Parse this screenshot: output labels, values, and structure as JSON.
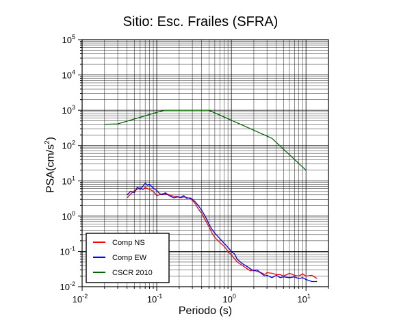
{
  "chart_data": {
    "type": "line",
    "title": "Sitio: Esc. Frailes (SFRA)",
    "xlabel": "Periodo (s)",
    "ylabel_base": "PSA(cm/s",
    "ylabel_exp": "2",
    "ylabel_tail": ")",
    "x_scale": "log",
    "y_scale": "log",
    "xlim": [
      0.01,
      20
    ],
    "ylim": [
      0.01,
      100000
    ],
    "grid": true,
    "legend_position": "bottom-left",
    "x_ticks": [
      {
        "base": "10",
        "exp": "-2",
        "value": 0.01
      },
      {
        "base": "10",
        "exp": "-1",
        "value": 0.1
      },
      {
        "base": "10",
        "exp": "0",
        "value": 1
      },
      {
        "base": "10",
        "exp": "1",
        "value": 10
      }
    ],
    "y_ticks": [
      {
        "base": "10",
        "exp": "-2",
        "value": 0.01
      },
      {
        "base": "10",
        "exp": "-1",
        "value": 0.1
      },
      {
        "base": "10",
        "exp": "0",
        "value": 1
      },
      {
        "base": "10",
        "exp": "1",
        "value": 10
      },
      {
        "base": "10",
        "exp": "2",
        "value": 100
      },
      {
        "base": "10",
        "exp": "3",
        "value": 1000
      },
      {
        "base": "10",
        "exp": "4",
        "value": 10000
      },
      {
        "base": "10",
        "exp": "5",
        "value": 100000
      }
    ],
    "series": [
      {
        "name": "Comp NS",
        "color": "#ff0000",
        "x": [
          0.04,
          0.045,
          0.05,
          0.055,
          0.06,
          0.065,
          0.07,
          0.075,
          0.08,
          0.09,
          0.1,
          0.11,
          0.12,
          0.13,
          0.15,
          0.17,
          0.19,
          0.21,
          0.23,
          0.25,
          0.28,
          0.3,
          0.33,
          0.36,
          0.4,
          0.45,
          0.5,
          0.55,
          0.6,
          0.7,
          0.8,
          0.9,
          1.0,
          1.1,
          1.2,
          1.4,
          1.6,
          1.8,
          2.0,
          2.2,
          2.5,
          2.8,
          3.0,
          3.5,
          4.0,
          4.5,
          5.0,
          6.0,
          7.0,
          8.0,
          9.0,
          10.0,
          12.0,
          14.0
        ],
        "y": [
          3.3,
          4.3,
          5.2,
          5.8,
          6.4,
          5.6,
          6.5,
          6.0,
          5.8,
          5.0,
          3.8,
          4.1,
          4.3,
          4.2,
          4.0,
          3.6,
          3.6,
          3.3,
          3.5,
          3.4,
          3.1,
          2.8,
          2.2,
          1.6,
          1.2,
          0.75,
          0.5,
          0.33,
          0.25,
          0.18,
          0.14,
          0.1,
          0.08,
          0.062,
          0.05,
          0.04,
          0.033,
          0.028,
          0.03,
          0.027,
          0.025,
          0.022,
          0.025,
          0.024,
          0.022,
          0.022,
          0.02,
          0.024,
          0.021,
          0.02,
          0.023,
          0.02,
          0.021,
          0.017
        ]
      },
      {
        "name": "Comp EW",
        "color": "#0000ff",
        "x": [
          0.04,
          0.045,
          0.05,
          0.055,
          0.06,
          0.065,
          0.07,
          0.075,
          0.08,
          0.09,
          0.1,
          0.11,
          0.12,
          0.13,
          0.15,
          0.17,
          0.19,
          0.21,
          0.23,
          0.25,
          0.28,
          0.3,
          0.33,
          0.36,
          0.4,
          0.45,
          0.5,
          0.55,
          0.6,
          0.7,
          0.8,
          0.9,
          1.0,
          1.1,
          1.2,
          1.4,
          1.6,
          1.8,
          2.0,
          2.2,
          2.5,
          2.8,
          3.0,
          3.5,
          4.0,
          4.5,
          5.0,
          6.0,
          7.0,
          8.0,
          9.0,
          10.0,
          12.0,
          14.0
        ],
        "y": [
          4.0,
          5.1,
          4.6,
          6.6,
          5.7,
          7.0,
          8.5,
          7.5,
          7.9,
          6.2,
          5.3,
          4.3,
          4.1,
          4.6,
          3.7,
          3.3,
          3.5,
          3.4,
          3.8,
          3.2,
          3.3,
          3.0,
          2.5,
          2.0,
          1.45,
          0.95,
          0.6,
          0.42,
          0.33,
          0.23,
          0.17,
          0.13,
          0.1,
          0.085,
          0.06,
          0.045,
          0.038,
          0.032,
          0.028,
          0.03,
          0.024,
          0.02,
          0.021,
          0.018,
          0.021,
          0.018,
          0.019,
          0.018,
          0.019,
          0.017,
          0.018,
          0.016,
          0.014,
          0.014
        ]
      },
      {
        "name": "CSCR 2010",
        "color": "#006400",
        "x": [
          0.02,
          0.03,
          0.125,
          0.5,
          3.5,
          10.0
        ],
        "y": [
          400,
          410,
          1000,
          1000,
          160,
          20
        ]
      }
    ]
  }
}
